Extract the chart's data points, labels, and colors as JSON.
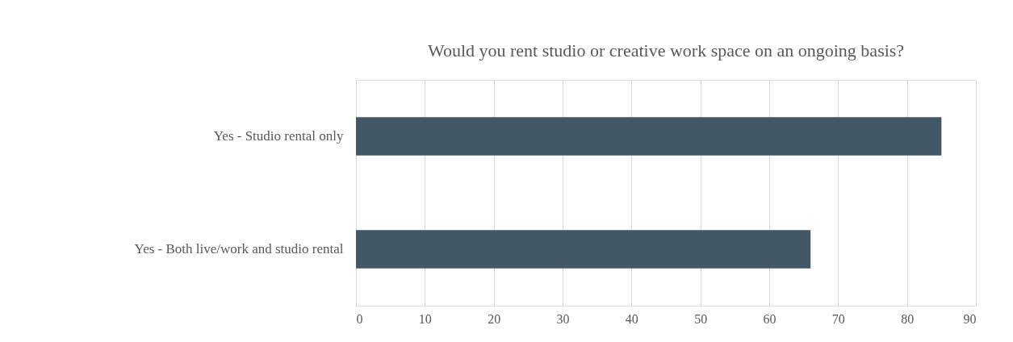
{
  "chart_data": {
    "type": "bar",
    "orientation": "horizontal",
    "title": "Would you rent studio or creative work space on an ongoing basis?",
    "categories": [
      "Yes - Studio rental only",
      "Yes - Both live/work and studio rental"
    ],
    "values": [
      85,
      66
    ],
    "color": "#435867",
    "xlim": [
      0,
      90
    ],
    "xticks": [
      0,
      10,
      20,
      30,
      40,
      50,
      60,
      70,
      80,
      90
    ],
    "grid": "x"
  }
}
